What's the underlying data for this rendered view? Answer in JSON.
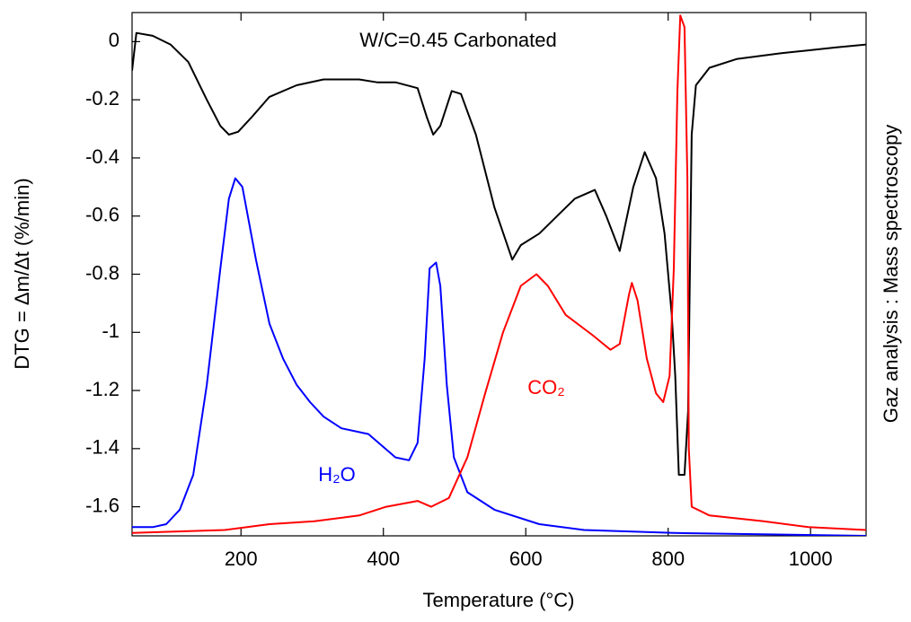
{
  "chart_data": {
    "type": "line",
    "title": "W/C=0.45 Carbonated",
    "x_label": "Temperature (°C)",
    "y_label": "DTG = Δm/Δt (%/min)",
    "y2_label": "Gaz analysis : Mass spectroscopy",
    "xlim": [
      47,
      1078
    ],
    "ylim": [
      -1.7,
      0.1
    ],
    "xticks": [
      200,
      400,
      600,
      800,
      1000
    ],
    "yticks": [
      0,
      -0.2,
      -0.4,
      -0.6,
      -0.8,
      -1,
      -1.2,
      -1.4,
      -1.6
    ],
    "grid": false,
    "series": [
      {
        "color": "#000000",
        "x": [
          47,
          53,
          76,
          101,
          126,
          152,
          171,
          183,
          196,
          215,
          240,
          278,
          316,
          366,
          391,
          417,
          448,
          461,
          470,
          480,
          496,
          509,
          530,
          556,
          581,
          593,
          619,
          644,
          669,
          697,
          713,
          732,
          751,
          767,
          783,
          795,
          805,
          810,
          815,
          823,
          828,
          833,
          839,
          858,
          896,
          959,
          997,
          1035,
          1078
        ],
        "values": [
          -0.1,
          0.03,
          0.02,
          -0.01,
          -0.07,
          -0.2,
          -0.29,
          -0.32,
          -0.31,
          -0.26,
          -0.19,
          -0.15,
          -0.13,
          -0.13,
          -0.14,
          -0.14,
          -0.16,
          -0.26,
          -0.32,
          -0.29,
          -0.17,
          -0.18,
          -0.32,
          -0.57,
          -0.75,
          -0.7,
          -0.66,
          -0.6,
          -0.54,
          -0.51,
          -0.6,
          -0.72,
          -0.5,
          -0.38,
          -0.47,
          -0.66,
          -0.94,
          -1.15,
          -1.49,
          -1.49,
          -1.27,
          -0.32,
          -0.15,
          -0.09,
          -0.06,
          -0.04,
          -0.03,
          -0.02,
          -0.01
        ]
      },
      {
        "name": "H₂O",
        "color": "#0000ff",
        "x": [
          47,
          76,
          95,
          114,
          133,
          152,
          171,
          183,
          192,
          202,
          221,
          240,
          259,
          278,
          297,
          316,
          341,
          379,
          417,
          436,
          448,
          458,
          465,
          474,
          480,
          489,
          499,
          518,
          556,
          619,
          682,
          808,
          1078
        ],
        "values": [
          -1.67,
          -1.67,
          -1.66,
          -1.61,
          -1.49,
          -1.18,
          -0.78,
          -0.54,
          -0.47,
          -0.5,
          -0.75,
          -0.97,
          -1.09,
          -1.18,
          -1.24,
          -1.29,
          -1.33,
          -1.35,
          -1.43,
          -1.44,
          -1.38,
          -1.09,
          -0.78,
          -0.76,
          -0.84,
          -1.18,
          -1.43,
          -1.55,
          -1.61,
          -1.66,
          -1.68,
          -1.69,
          -1.7
        ]
      },
      {
        "name": "CO₂",
        "color": "#ff0000",
        "x": [
          47,
          177,
          240,
          303,
          366,
          404,
          448,
          467,
          492,
          505,
          518,
          543,
          568,
          593,
          615,
          631,
          656,
          694,
          719,
          732,
          745,
          749,
          757,
          770,
          783,
          793,
          802,
          808,
          813,
          817,
          823,
          827,
          829,
          833,
          858,
          934,
          997,
          1078
        ],
        "values": [
          -1.69,
          -1.68,
          -1.66,
          -1.65,
          -1.63,
          -1.6,
          -1.58,
          -1.6,
          -1.57,
          -1.5,
          -1.43,
          -1.21,
          -1,
          -0.84,
          -0.8,
          -0.84,
          -0.94,
          -1.01,
          -1.06,
          -1.04,
          -0.87,
          -0.83,
          -0.89,
          -1.09,
          -1.21,
          -1.24,
          -1.15,
          -0.78,
          -0.17,
          0.09,
          0.05,
          -0.47,
          -1.4,
          -1.6,
          -1.63,
          -1.65,
          -1.67,
          -1.68
        ]
      }
    ]
  }
}
